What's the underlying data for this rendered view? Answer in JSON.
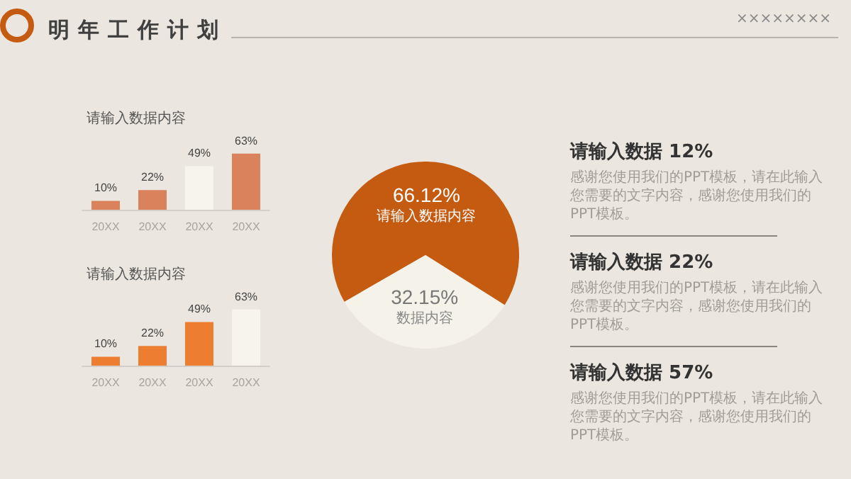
{
  "chart_data": [
    {
      "type": "bar",
      "title": "请输入数据内容",
      "categories": [
        "20XX",
        "20XX",
        "20XX",
        "20XX"
      ],
      "values": [
        10,
        22,
        49,
        63
      ],
      "colors": [
        "#d9825b",
        "#d9825b",
        "#f7f4ee",
        "#d9825b"
      ],
      "value_labels": [
        "10%",
        "22%",
        "49%",
        "63%"
      ]
    },
    {
      "type": "bar",
      "title": "请输入数据内容",
      "categories": [
        "20XX",
        "20XX",
        "20XX",
        "20XX"
      ],
      "values": [
        10,
        22,
        49,
        63
      ],
      "colors": [
        "#ed7d31",
        "#ed7d31",
        "#ed7d31",
        "#f7f4ee"
      ],
      "value_labels": [
        "10%",
        "22%",
        "49%",
        "63%"
      ]
    },
    {
      "type": "pie",
      "categories": [
        "请输入数据内容",
        "数据内容"
      ],
      "values": [
        66.12,
        32.15
      ],
      "colors": [
        "#c55a11",
        "#f5f2ea"
      ],
      "value_labels": [
        "66.12%",
        "32.15%"
      ]
    },
    {
      "type": "other",
      "title": "明年工作计划",
      "annotations": [
        "××××××××",
        "请输入数据 12%",
        "感谢您使用我们的PPT模板，请在此输入您需要的文字内容，感谢您使用我们的PPT模板。",
        "请输入数据 22%",
        "感谢您使用我们的PPT模板，请在此输入您需要的文字内容，感谢您使用我们的PPT模板。",
        "请输入数据 57%",
        "感谢您使用我们的PPT模板，请在此输入您需要的文字内容，感谢您使用我们的PPT模板。"
      ]
    }
  ]
}
